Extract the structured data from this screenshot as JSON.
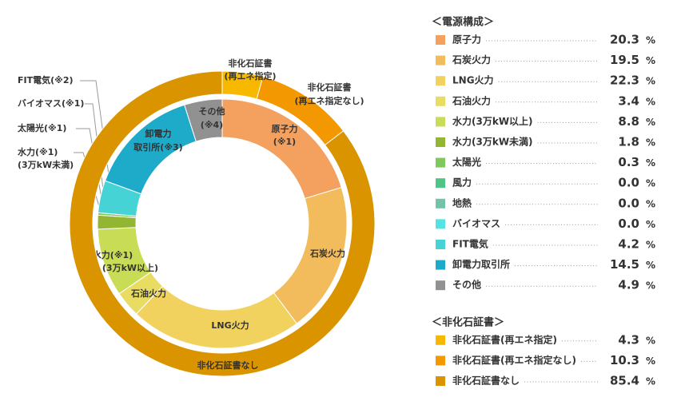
{
  "unit": "%",
  "chart_data": [
    {
      "type": "donut",
      "title": "＜電源構成＞",
      "categories": [
        "原子力",
        "石炭火力",
        "LNG火力",
        "石油火力",
        "水力(3万kW以上)",
        "水力(3万kW未満)",
        "太陽光",
        "風力",
        "地熱",
        "バイオマス",
        "FIT電気",
        "卸電力取引所",
        "その他"
      ],
      "values": [
        20.3,
        19.5,
        22.3,
        3.4,
        8.8,
        1.8,
        0.3,
        0,
        0,
        0,
        4.2,
        14.5,
        4.9
      ],
      "value_labels": [
        "20.3",
        "19.5",
        "22.3",
        "3.4",
        "8.8",
        "1.8",
        "0.3",
        "0.0",
        "0.0",
        "0.0",
        "4.2",
        "14.5",
        "4.9"
      ],
      "colors": [
        "#f4a15f",
        "#f2bb5c",
        "#f1d25e",
        "#e8dc63",
        "#c9dc55",
        "#93b632",
        "#7ec85f",
        "#4fc486",
        "#72c3a9",
        "#52e3e3",
        "#45d3d5",
        "#1eaac9",
        "#919191"
      ],
      "slice_labels": [
        [
          "原子力",
          "(※1)"
        ],
        [
          "石炭火力"
        ],
        [
          "LNG火力"
        ],
        [
          "石油火力"
        ],
        [
          "水力(※1)",
          "(3万kW以上)"
        ],
        [
          "水力(※1)",
          "(3万kW未満)"
        ],
        [
          "太陽光(※1)"
        ],
        null,
        null,
        [
          "バイオマス(※1)"
        ],
        [
          "FIT電気(※2)"
        ],
        [
          "卸電力",
          "取引所(※3)"
        ],
        [
          "その他",
          "(※4)"
        ]
      ]
    },
    {
      "type": "donut",
      "title": "＜非化石証書＞",
      "categories": [
        "非化石証書(再エネ指定)",
        "非化石証書(再エネ指定なし)",
        "非化石証書なし"
      ],
      "values": [
        4.3,
        10.3,
        85.4
      ],
      "colors": [
        "#f6b900",
        "#f39800",
        "#d99400"
      ],
      "slice_labels": [
        [
          "非化石証書",
          "(再エネ指定)"
        ],
        [
          "非化石証書",
          "(再エネ指定なし)"
        ],
        [
          "非化石証書なし"
        ]
      ]
    }
  ]
}
